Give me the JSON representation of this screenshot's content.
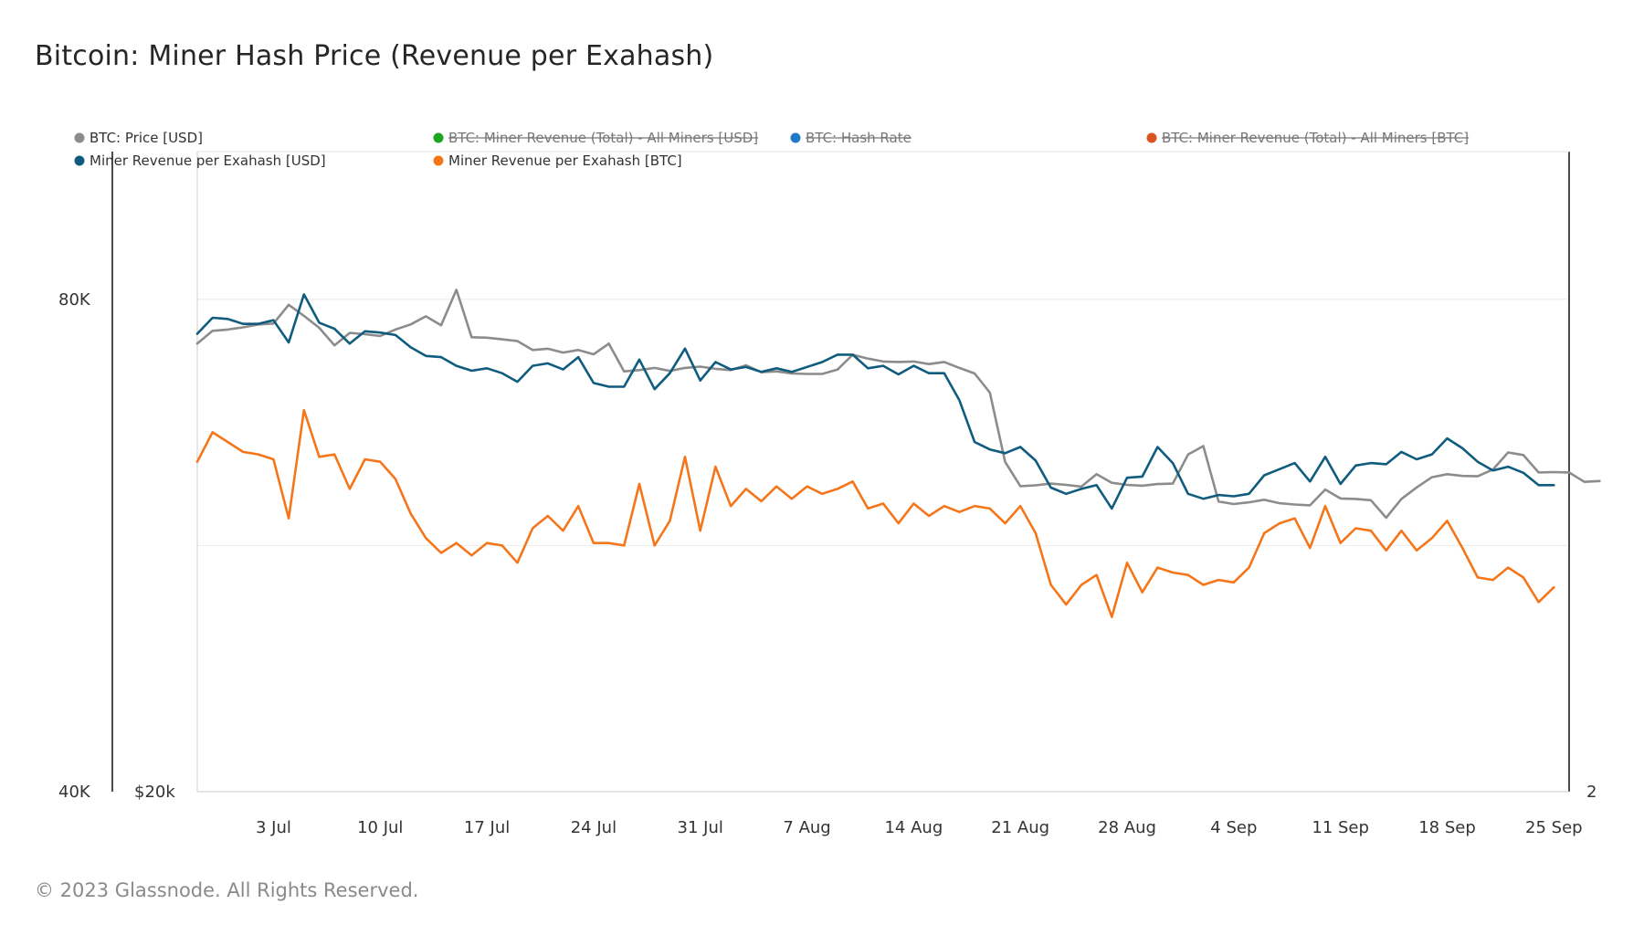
{
  "title": "Bitcoin: Miner Hash Price (Revenue per Exahash)",
  "footer": "© 2023 Glassnode. All Rights Reserved.",
  "chart_data": {
    "type": "line",
    "title": "Bitcoin: Miner Hash Price (Revenue per Exahash)",
    "x_ticks": [
      "3 Jul",
      "10 Jul",
      "17 Jul",
      "24 Jul",
      "31 Jul",
      "7 Aug",
      "14 Aug",
      "21 Aug",
      "28 Aug",
      "4 Sep",
      "11 Sep",
      "18 Sep",
      "25 Sep"
    ],
    "x_range": [
      "2023-06-28",
      "2023-09-26"
    ],
    "axes": {
      "left_outer": {
        "ticks": [
          "80K",
          "40K"
        ],
        "range": [
          40000,
          92000
        ],
        "series": "Miner Revenue per Exahash [USD]"
      },
      "left_inner": {
        "ticks": [
          "$20k"
        ],
        "range": [
          20000,
          35000
        ],
        "series": "BTC: Price [USD]"
      },
      "right": {
        "ticks": [
          "2"
        ],
        "range": [
          2,
          3.3
        ],
        "series": "Miner Revenue per Exahash [BTC]"
      }
    },
    "grid": true,
    "legend_position": "top",
    "legend": [
      {
        "name": "BTC: Price [USD]",
        "color": "#8c8c8c",
        "visible": true
      },
      {
        "name": "BTC: Miner Revenue (Total) - All Miners [USD]",
        "color": "#1ea51e",
        "visible": false
      },
      {
        "name": "BTC: Hash Rate",
        "color": "#1f78c8",
        "visible": false
      },
      {
        "name": "BTC: Miner Revenue (Total) - All Miners [BTC]",
        "color": "#d9531e",
        "visible": false
      },
      {
        "name": "Miner Revenue per Exahash [USD]",
        "color": "#0f5c7e",
        "visible": true
      },
      {
        "name": "Miner Revenue per Exahash [BTC]",
        "color": "#f5761a",
        "visible": true
      }
    ],
    "series": [
      {
        "name": "BTC: Price [USD]",
        "axis": "left_inner",
        "color": "#8c8c8c",
        "values": [
          30500,
          30800,
          30830,
          30880,
          30950,
          30970,
          31410,
          31150,
          30870,
          30460,
          30750,
          30720,
          30680,
          30830,
          30950,
          31140,
          30930,
          31760,
          30650,
          30640,
          30600,
          30560,
          30350,
          30380,
          30290,
          30350,
          30250,
          30500,
          29850,
          29880,
          29930,
          29860,
          29930,
          29960,
          29910,
          29880,
          29990,
          29830,
          29850,
          29800,
          29790,
          29790,
          29890,
          30240,
          30150,
          30080,
          30070,
          30080,
          30020,
          30070,
          29930,
          29800,
          29350,
          27730,
          27160,
          27180,
          27220,
          27190,
          27150,
          27440,
          27240,
          27190,
          27170,
          27210,
          27220,
          27900,
          28100,
          26800,
          26740,
          26780,
          26840,
          26760,
          26730,
          26710,
          27080,
          26870,
          26860,
          26830,
          26420,
          26860,
          27130,
          27370,
          27440,
          27400,
          27390,
          27550,
          27950,
          27890,
          27480,
          27490,
          27480,
          27260,
          27280
        ]
      },
      {
        "name": "Miner Revenue per Exahash [USD]",
        "axis": "left_outer",
        "color": "#0f5c7e",
        "values": [
          77200,
          78500,
          78400,
          78000,
          78000,
          78300,
          76500,
          80400,
          78100,
          77600,
          76400,
          77400,
          77300,
          77100,
          76100,
          75400,
          75300,
          74600,
          74200,
          74400,
          74000,
          73300,
          74600,
          74800,
          74300,
          75300,
          73200,
          72900,
          72900,
          75100,
          72700,
          74000,
          76000,
          73400,
          74900,
          74300,
          74500,
          74100,
          74400,
          74100,
          74500,
          74900,
          75500,
          75500,
          74400,
          74600,
          73900,
          74600,
          74000,
          74000,
          71800,
          68400,
          67800,
          67500,
          68000,
          66900,
          64700,
          64200,
          64600,
          64900,
          63000,
          65500,
          65600,
          68000,
          66700,
          64200,
          63800,
          64100,
          64000,
          64200,
          65700,
          66200,
          66700,
          65200,
          67200,
          65000,
          66500,
          66700,
          66600,
          67600,
          67000,
          67400,
          68700,
          67900,
          66800,
          66100,
          66400,
          65900,
          64900,
          64900
        ]
      },
      {
        "name": "Miner Revenue per Exahash [BTC]",
        "axis": "right",
        "color": "#f5761a",
        "values": [
          2.67,
          2.73,
          2.71,
          2.69,
          2.685,
          2.675,
          2.555,
          2.775,
          2.68,
          2.685,
          2.615,
          2.675,
          2.67,
          2.635,
          2.565,
          2.515,
          2.485,
          2.505,
          2.48,
          2.505,
          2.5,
          2.465,
          2.535,
          2.56,
          2.53,
          2.58,
          2.505,
          2.505,
          2.5,
          2.625,
          2.5,
          2.55,
          2.68,
          2.53,
          2.66,
          2.58,
          2.615,
          2.59,
          2.62,
          2.595,
          2.62,
          2.605,
          2.615,
          2.63,
          2.575,
          2.585,
          2.545,
          2.585,
          2.56,
          2.58,
          2.568,
          2.58,
          2.575,
          2.545,
          2.58,
          2.525,
          2.42,
          2.38,
          2.42,
          2.44,
          2.355,
          2.465,
          2.405,
          2.455,
          2.445,
          2.44,
          2.42,
          2.43,
          2.425,
          2.455,
          2.525,
          2.545,
          2.555,
          2.495,
          2.58,
          2.505,
          2.535,
          2.53,
          2.49,
          2.53,
          2.49,
          2.515,
          2.55,
          2.495,
          2.435,
          2.43,
          2.455,
          2.435,
          2.385,
          2.415
        ]
      }
    ]
  }
}
